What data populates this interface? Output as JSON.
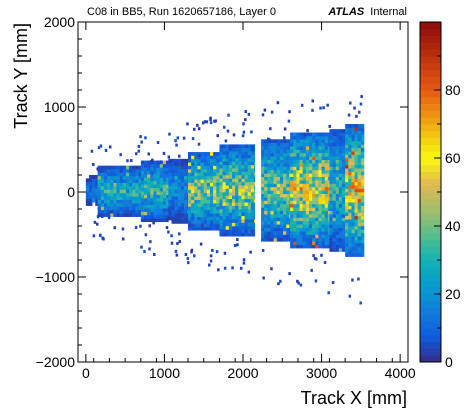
{
  "header": {
    "title": "C08 in BB5, Run 1620657186, Layer 0",
    "experiment": "ATLAS",
    "experiment_status": "Internal"
  },
  "chart_data": {
    "type": "heatmap",
    "title": "C08 in BB5, Run 1620657186, Layer 0",
    "xlabel": "Track X [mm]",
    "ylabel": "Track Y [mm]",
    "xlim": [
      -100,
      4100
    ],
    "ylim": [
      -2000,
      2000
    ],
    "x_ticks": [
      0,
      1000,
      2000,
      3000,
      4000
    ],
    "x_tick_labels": [
      "0",
      "1000",
      "2000",
      "3000",
      "4000"
    ],
    "y_ticks": [
      -2000,
      -1000,
      0,
      1000,
      2000
    ],
    "y_tick_labels": [
      "−2000",
      "−1000",
      "0",
      "1000",
      "2000"
    ],
    "z_range": [
      0,
      100
    ],
    "z_ticks": [
      0,
      20,
      40,
      60,
      80
    ],
    "z_tick_labels": [
      "0",
      "20",
      "40",
      "60",
      "80"
    ],
    "colormap": "kBird",
    "grid": false,
    "gap_x": [
      2150,
      2230
    ],
    "regions": [
      {
        "x0": 0,
        "x1": 150,
        "ymin": -160,
        "ymax": 170,
        "peak": 20
      },
      {
        "x0": 150,
        "x1": 700,
        "ymin": -290,
        "ymax": 280,
        "peak": 40
      },
      {
        "x0": 700,
        "x1": 1050,
        "ymin": -350,
        "ymax": 360,
        "peak": 45
      },
      {
        "x0": 1050,
        "x1": 1300,
        "ymin": -370,
        "ymax": 380,
        "peak": 25
      },
      {
        "x0": 1300,
        "x1": 1700,
        "ymin": -450,
        "ymax": 460,
        "peak": 55
      },
      {
        "x0": 1700,
        "x1": 2150,
        "ymin": -520,
        "ymax": 540,
        "peak": 60
      },
      {
        "x0": 2230,
        "x1": 2600,
        "ymin": -580,
        "ymax": 620,
        "peak": 55
      },
      {
        "x0": 2600,
        "x1": 3100,
        "ymin": -660,
        "ymax": 700,
        "peak": 75
      },
      {
        "x0": 3100,
        "x1": 3300,
        "ymin": -700,
        "ymax": 730,
        "peak": 40
      },
      {
        "x0": 3300,
        "x1": 3540,
        "ymin": -760,
        "ymax": 780,
        "peak": 80
      }
    ]
  }
}
